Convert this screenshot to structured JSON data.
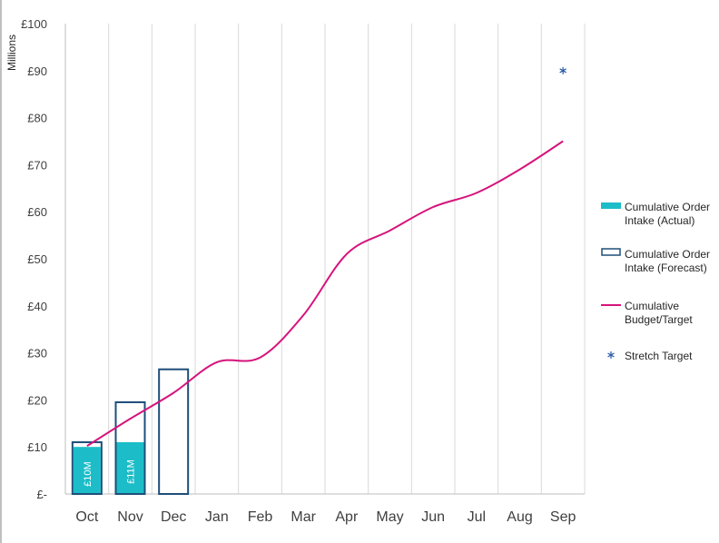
{
  "chart_data": {
    "type": "bar",
    "ylabel": "Millions",
    "ylim": [
      0,
      100
    ],
    "yticks": [
      {
        "value": 0,
        "label": "£-"
      },
      {
        "value": 10,
        "label": "£10"
      },
      {
        "value": 20,
        "label": "£20"
      },
      {
        "value": 30,
        "label": "£30"
      },
      {
        "value": 40,
        "label": "£40"
      },
      {
        "value": 50,
        "label": "£50"
      },
      {
        "value": 60,
        "label": "£60"
      },
      {
        "value": 70,
        "label": "£70"
      },
      {
        "value": 80,
        "label": "£80"
      },
      {
        "value": 90,
        "label": "£90"
      },
      {
        "value": 100,
        "label": "£100"
      }
    ],
    "categories": [
      "Oct",
      "Nov",
      "Dec",
      "Jan",
      "Feb",
      "Mar",
      "Apr",
      "May",
      "Jun",
      "Jul",
      "Aug",
      "Sep"
    ],
    "grid": "vertical",
    "legend_position": "right",
    "series": [
      {
        "name": "Cumulative Order Intake (Actual)",
        "kind": "bar-filled",
        "color": "#1cbdc8",
        "values": [
          10,
          11,
          null,
          null,
          null,
          null,
          null,
          null,
          null,
          null,
          null,
          null
        ],
        "data_labels": [
          "£10M",
          "£11M",
          "",
          "",
          "",
          "",
          "",
          "",
          "",
          "",
          "",
          ""
        ]
      },
      {
        "name": "Cumulative Order Intake (Forecast)",
        "kind": "bar-outline",
        "color": "#1f4e79",
        "values": [
          11,
          19.5,
          26.5,
          null,
          null,
          null,
          null,
          null,
          null,
          null,
          null,
          null
        ]
      },
      {
        "name": "Cumulative Budget/Target",
        "kind": "line",
        "color": "#d6137c",
        "values": [
          10.2,
          16,
          21.5,
          28,
          29,
          38,
          51,
          56,
          61,
          64,
          69,
          75
        ]
      },
      {
        "name": "Stretch Target",
        "kind": "marker",
        "color": "#2b5aa6",
        "values": [
          null,
          null,
          null,
          null,
          null,
          null,
          null,
          null,
          null,
          null,
          null,
          90
        ]
      }
    ],
    "legend": [
      {
        "line1": "Cumulative Order",
        "line2": "Intake (Actual)"
      },
      {
        "line1": "Cumulative Order",
        "line2": "Intake (Forecast)"
      },
      {
        "line1": "Cumulative",
        "line2": "Budget/Target"
      },
      {
        "line1": "Stretch Target",
        "line2": ""
      }
    ]
  }
}
